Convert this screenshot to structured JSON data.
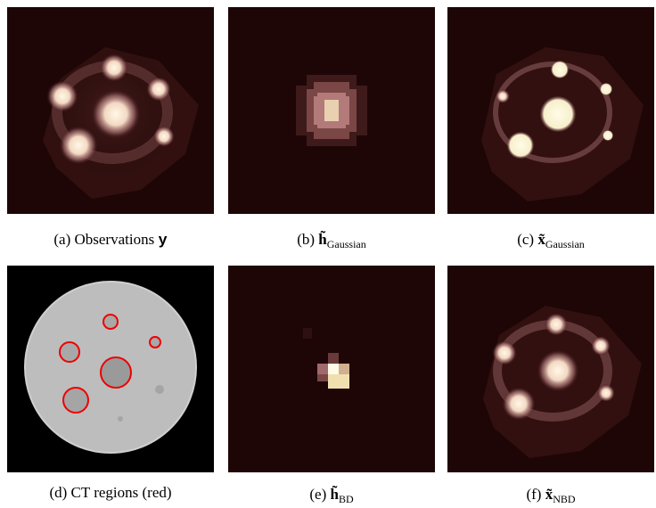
{
  "panels": [
    {
      "label": "(a) Observations",
      "symbol": "y"
    },
    {
      "label": "(b)",
      "symbol": "h̃",
      "subscript": "Gaussian"
    },
    {
      "label": "(c)",
      "symbol": "x̃",
      "subscript": "Gaussian"
    },
    {
      "label": "(d) CT regions (red)"
    },
    {
      "label": "(e)",
      "symbol": "h̃",
      "subscript": "BD"
    },
    {
      "label": "(f)",
      "symbol": "x̃",
      "subscript": "NBD"
    }
  ]
}
